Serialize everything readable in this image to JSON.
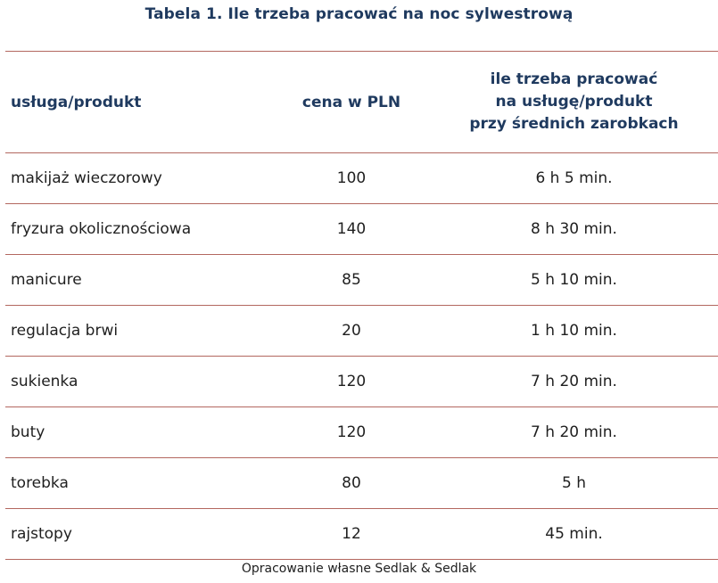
{
  "title": "Tabela 1. Ile trzeba pracować na noc sylwestrową",
  "headers": {
    "col1": "usługa/produkt",
    "col2": "cena w PLN",
    "col3_lines": [
      "ile trzeba pracować",
      "na usługę/produkt",
      "przy średnich zarobkach"
    ]
  },
  "rows": [
    {
      "item": "makijaż wieczorowy",
      "price": "100",
      "time": "6 h 5 min."
    },
    {
      "item": "fryzura okolicznościowa",
      "price": "140",
      "time": "8 h 30 min."
    },
    {
      "item": "manicure",
      "price": "85",
      "time": "5 h 10 min."
    },
    {
      "item": "regulacja brwi",
      "price": "20",
      "time": "1 h 10 min."
    },
    {
      "item": "sukienka",
      "price": "120",
      "time": "7 h 20 min."
    },
    {
      "item": "buty",
      "price": "120",
      "time": "7 h 20 min."
    },
    {
      "item": "torebka",
      "price": "80",
      "time": "5 h"
    },
    {
      "item": "rajstopy",
      "price": "12",
      "time": "45 min."
    }
  ],
  "footer": "Opracowanie własne Sedlak & Sedlak",
  "colors": {
    "heading": "#1f3a5f",
    "rule": "#b3675f"
  }
}
